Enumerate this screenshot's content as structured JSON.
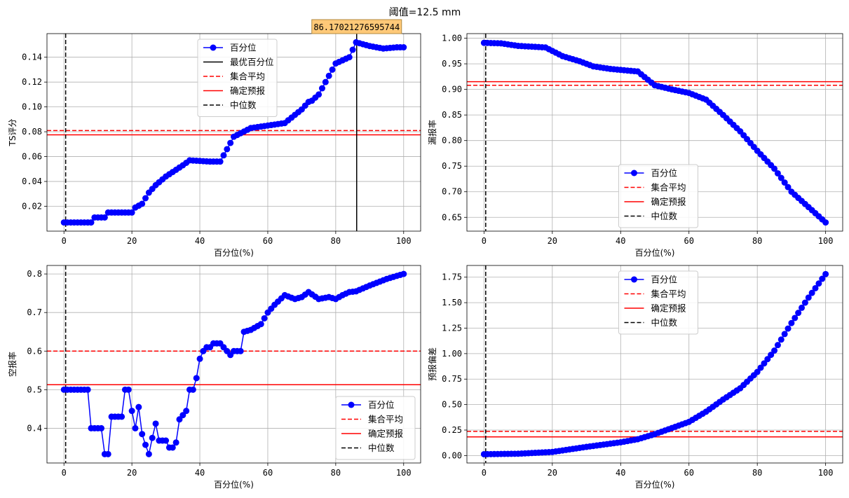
{
  "suptitle": "阈值=12.5 mm",
  "chart_data": [
    {
      "type": "line",
      "id": "ts",
      "xlabel": "百分位(%)",
      "ylabel": "TS评分",
      "xlim": [
        -5,
        105
      ],
      "ylim": [
        0.0,
        0.159
      ],
      "xticks": [
        0,
        20,
        40,
        60,
        80,
        100
      ],
      "yticks": [
        0.02,
        0.04,
        0.06,
        0.08,
        0.1,
        0.12,
        0.14
      ],
      "ytick_labels": [
        "0.02",
        "0.04",
        "0.06",
        "0.08",
        "0.10",
        "0.12",
        "0.14"
      ],
      "grid": true,
      "series_name": "百分位",
      "hlines": [
        {
          "name": "集合平均",
          "y": 0.081,
          "style": "dashed",
          "color": "#ff0000"
        },
        {
          "name": "确定预报",
          "y": 0.0775,
          "style": "solid",
          "color": "#ff0000"
        }
      ],
      "vlines": [
        {
          "name": "最优百分位",
          "x": 86.17021276595744,
          "style": "solid",
          "color": "#000000"
        },
        {
          "name": "中位数",
          "x": 0.5,
          "style": "dashed",
          "color": "#000000"
        }
      ],
      "legend_order": [
        "series",
        "最优百分位",
        "集合平均",
        "确定预报",
        "中位数"
      ],
      "legend": "upper-center",
      "annotation": {
        "text": "86.17021276595744",
        "x": 86.17021276595744
      },
      "kp_x": [
        0,
        8,
        9,
        12,
        13,
        20,
        21,
        23,
        25,
        27,
        30,
        35,
        37,
        43,
        46,
        50,
        55,
        60,
        65,
        70,
        72,
        73,
        75,
        77,
        80,
        84,
        86,
        90,
        94,
        98,
        100
      ],
      "kp_y": [
        0.007,
        0.007,
        0.011,
        0.011,
        0.015,
        0.015,
        0.019,
        0.022,
        0.031,
        0.037,
        0.044,
        0.053,
        0.057,
        0.056,
        0.056,
        0.076,
        0.083,
        0.085,
        0.087,
        0.098,
        0.104,
        0.105,
        0.11,
        0.12,
        0.135,
        0.14,
        0.152,
        0.149,
        0.147,
        0.148,
        0.148
      ]
    },
    {
      "type": "line",
      "id": "miss",
      "xlabel": "百分位(%)",
      "ylabel": "漏报率",
      "xlim": [
        -5,
        105
      ],
      "ylim": [
        0.623,
        1.009
      ],
      "xticks": [
        0,
        20,
        40,
        60,
        80,
        100
      ],
      "yticks": [
        0.65,
        0.7,
        0.75,
        0.8,
        0.85,
        0.9,
        0.95,
        1.0
      ],
      "ytick_labels": [
        "0.65",
        "0.70",
        "0.75",
        "0.80",
        "0.85",
        "0.90",
        "0.95",
        "1.00"
      ],
      "grid": true,
      "series_name": "百分位",
      "hlines": [
        {
          "name": "集合平均",
          "y": 0.908,
          "style": "dashed",
          "color": "#ff0000"
        },
        {
          "name": "确定预报",
          "y": 0.915,
          "style": "solid",
          "color": "#ff0000"
        }
      ],
      "vlines": [
        {
          "name": "中位数",
          "x": 0.5,
          "style": "dashed",
          "color": "#000000"
        }
      ],
      "legend_order": [
        "series",
        "集合平均",
        "确定预报",
        "中位数"
      ],
      "legend": "lower-center",
      "kp_x": [
        0,
        5,
        10,
        18,
        23,
        28,
        32,
        37,
        45,
        50,
        55,
        60,
        65,
        70,
        75,
        80,
        85,
        90,
        95,
        98,
        100
      ],
      "kp_y": [
        0.991,
        0.99,
        0.985,
        0.982,
        0.965,
        0.955,
        0.945,
        0.94,
        0.935,
        0.908,
        0.9,
        0.893,
        0.88,
        0.85,
        0.818,
        0.78,
        0.745,
        0.7,
        0.67,
        0.652,
        0.64
      ]
    },
    {
      "type": "line",
      "id": "far",
      "xlabel": "百分位(%)",
      "ylabel": "空报率",
      "xlim": [
        -5,
        105
      ],
      "ylim": [
        0.31,
        0.822
      ],
      "xticks": [
        0,
        20,
        40,
        60,
        80,
        100
      ],
      "yticks": [
        0.4,
        0.5,
        0.6,
        0.7,
        0.8
      ],
      "ytick_labels": [
        "0.4",
        "0.5",
        "0.6",
        "0.7",
        "0.8"
      ],
      "grid": true,
      "series_name": "百分位",
      "hlines": [
        {
          "name": "集合平均",
          "y": 0.6,
          "style": "dashed",
          "color": "#ff0000"
        },
        {
          "name": "确定预报",
          "y": 0.513,
          "style": "solid",
          "color": "#ff0000"
        }
      ],
      "vlines": [
        {
          "name": "中位数",
          "x": 0.5,
          "style": "dashed",
          "color": "#000000"
        }
      ],
      "legend_order": [
        "series",
        "集合平均",
        "确定预报",
        "中位数"
      ],
      "legend": "lower-right",
      "kp_x": [
        0,
        7,
        8,
        11,
        12,
        13,
        14,
        17,
        18,
        19,
        20,
        21,
        22,
        23,
        24,
        25,
        26,
        27,
        28,
        30,
        31,
        32,
        33,
        34,
        36,
        37,
        38,
        39,
        40,
        41,
        42,
        43,
        44,
        46,
        48,
        49,
        50,
        52,
        53,
        55,
        58,
        60,
        62,
        65,
        68,
        70,
        72,
        75,
        78,
        80,
        82,
        84,
        86,
        90,
        95,
        98,
        100
      ],
      "kp_y": [
        0.5,
        0.5,
        0.4,
        0.4,
        0.333,
        0.333,
        0.43,
        0.43,
        0.5,
        0.5,
        0.445,
        0.4,
        0.455,
        0.385,
        0.357,
        0.333,
        0.375,
        0.412,
        0.368,
        0.368,
        0.35,
        0.35,
        0.363,
        0.423,
        0.445,
        0.5,
        0.5,
        0.53,
        0.58,
        0.6,
        0.61,
        0.61,
        0.62,
        0.62,
        0.6,
        0.59,
        0.6,
        0.6,
        0.65,
        0.655,
        0.67,
        0.7,
        0.72,
        0.745,
        0.735,
        0.74,
        0.753,
        0.735,
        0.74,
        0.735,
        0.745,
        0.753,
        0.755,
        0.77,
        0.787,
        0.795,
        0.8
      ]
    },
    {
      "type": "line",
      "id": "bias",
      "xlabel": "百分位(%)",
      "ylabel": "预报偏差",
      "xlim": [
        -5,
        105
      ],
      "ylim": [
        -0.073,
        1.865
      ],
      "xticks": [
        0,
        20,
        40,
        60,
        80,
        100
      ],
      "yticks": [
        0.0,
        0.25,
        0.5,
        0.75,
        1.0,
        1.25,
        1.5,
        1.75
      ],
      "ytick_labels": [
        "0.00",
        "0.25",
        "0.50",
        "0.75",
        "1.00",
        "1.25",
        "1.50",
        "1.75"
      ],
      "grid": true,
      "series_name": "百分位",
      "hlines": [
        {
          "name": "集合平均",
          "y": 0.237,
          "style": "dashed",
          "color": "#ff0000"
        },
        {
          "name": "确定预报",
          "y": 0.183,
          "style": "solid",
          "color": "#ff0000"
        }
      ],
      "vlines": [
        {
          "name": "中位数",
          "x": 0.5,
          "style": "dashed",
          "color": "#000000"
        }
      ],
      "legend_order": [
        "series",
        "集合平均",
        "确定预报",
        "中位数"
      ],
      "legend": "upper-center",
      "kp_x": [
        0,
        10,
        20,
        30,
        40,
        45,
        50,
        55,
        60,
        65,
        70,
        75,
        80,
        85,
        90,
        95,
        100
      ],
      "kp_y": [
        0.013,
        0.018,
        0.035,
        0.085,
        0.13,
        0.16,
        0.21,
        0.27,
        0.33,
        0.43,
        0.55,
        0.66,
        0.82,
        1.03,
        1.3,
        1.55,
        1.78
      ]
    }
  ]
}
